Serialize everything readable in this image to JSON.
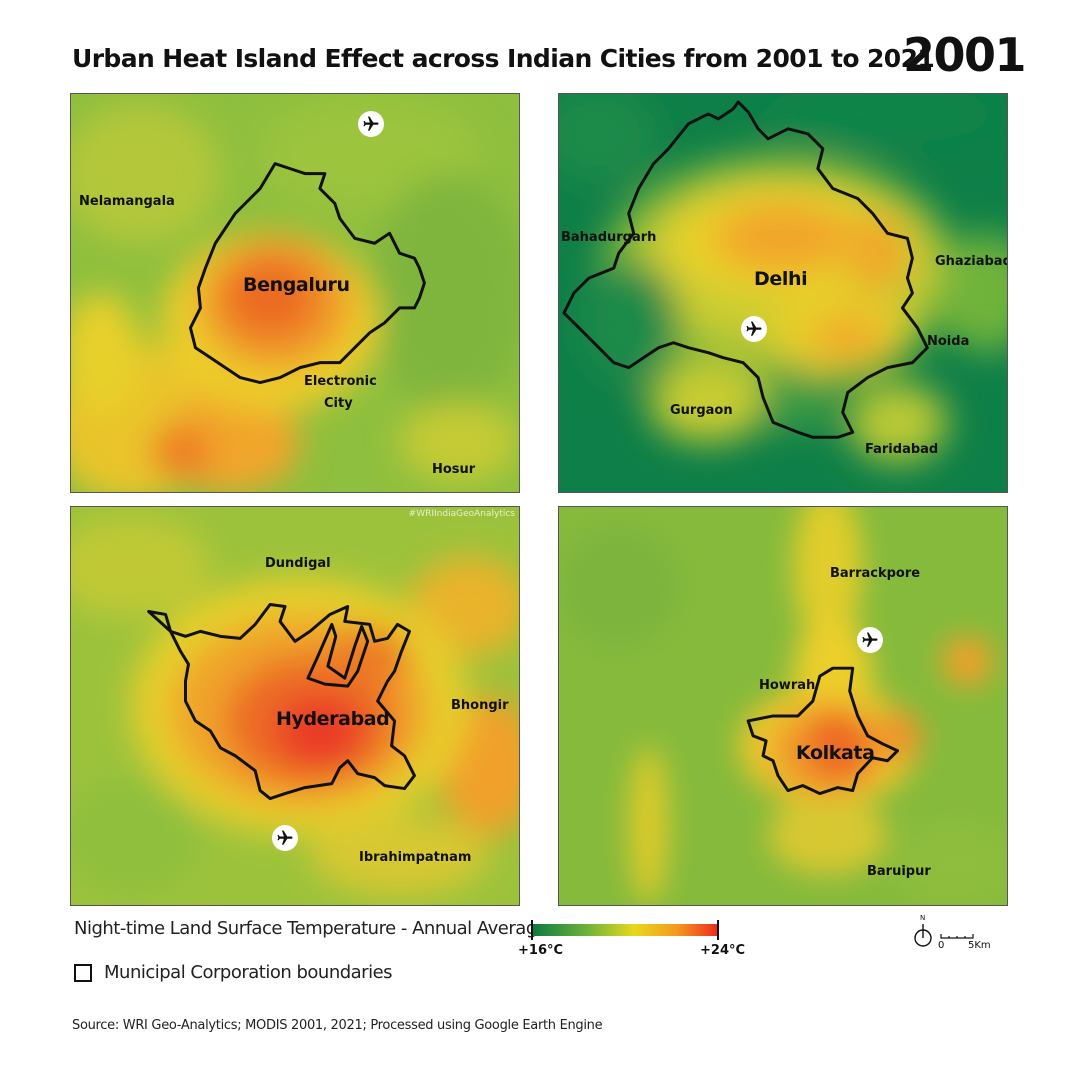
{
  "title": "Urban Heat Island Effect across Indian Cities from 2001 to 2021",
  "year": "2001",
  "watermark": "#WRIIndiaGeoAnalytics",
  "panels": {
    "bengaluru": {
      "city": "Bengaluru",
      "places": [
        "Nelamangala",
        "Electronic",
        "City",
        "Hosur"
      ],
      "has_airport": true
    },
    "delhi": {
      "city": "Delhi",
      "places": [
        "Bahadurgarh",
        "Ghaziabad",
        "Noida",
        "Gurgaon",
        "Faridabad"
      ],
      "has_airport": true
    },
    "hyderabad": {
      "city": "Hyderabad",
      "places": [
        "Dundigal",
        "Bhongir",
        "Ibrahimpatnam"
      ],
      "has_airport": true
    },
    "kolkata": {
      "city": "Kolkata",
      "places": [
        "Barrackpore",
        "Howrah",
        "Baruipur"
      ],
      "has_airport": true
    }
  },
  "legend": {
    "label": "Night-time Land Surface Temperature - Annual Average:",
    "min_label": "+16°C",
    "max_label": "+24°C",
    "min_value": 16,
    "max_value": 24,
    "ramp_colors": [
      "#0b7a3e",
      "#6fb33a",
      "#e8d81c",
      "#f39a1e",
      "#ee2a1c"
    ],
    "boundary_label": "Municipal Corporation boundaries"
  },
  "scale": {
    "north": "N",
    "zero": "0",
    "distance": "5Km"
  },
  "source": "Source: WRI Geo-Analytics; MODIS 2001, 2021; Processed using Google Earth Engine"
}
